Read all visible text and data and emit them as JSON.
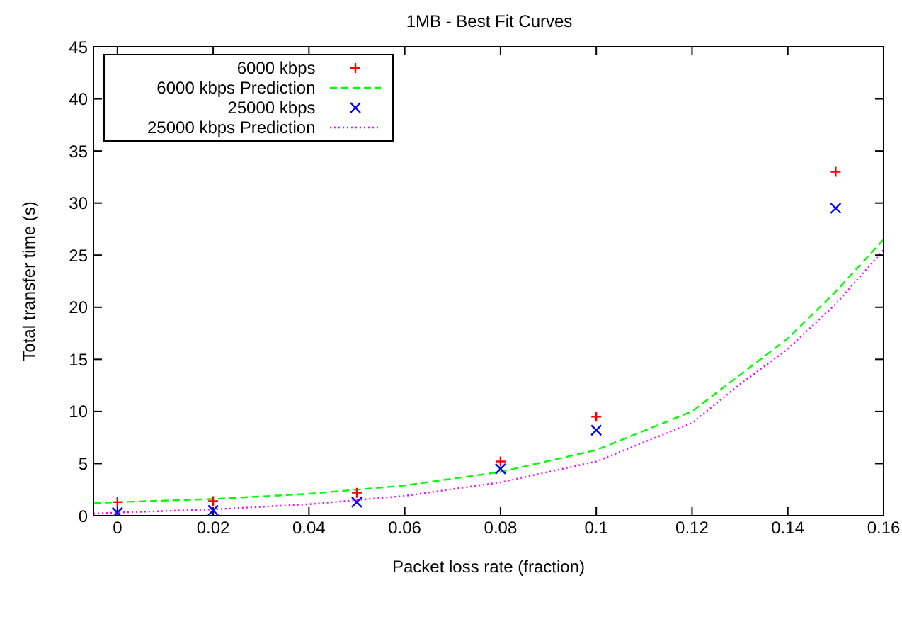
{
  "chart_data": {
    "type": "scatter",
    "title": "1MB - Best Fit Curves",
    "xlabel": "Packet loss rate (fraction)",
    "ylabel": "Total transfer time (s)",
    "xlim": [
      -0.005,
      0.16
    ],
    "xticks": [
      0,
      0.02,
      0.04,
      0.06,
      0.08,
      0.1,
      0.12,
      0.14,
      0.16
    ],
    "ylim": [
      0,
      45
    ],
    "yticks": [
      0,
      5,
      10,
      15,
      20,
      25,
      30,
      35,
      40,
      45
    ],
    "grid": false,
    "legend": "top left",
    "series": [
      {
        "name": "6000 kbps",
        "marker": "plus",
        "color": "#ff0000",
        "x": [
          0,
          0.02,
          0.05,
          0.08,
          0.1,
          0.15
        ],
        "values": [
          1.3,
          1.4,
          2.2,
          5.2,
          9.5,
          33
        ]
      },
      {
        "name": "6000 kbps Prediction",
        "type": "line",
        "line_style": "dashed",
        "color": "#00ff00",
        "x": [
          -0.005,
          0,
          0.02,
          0.04,
          0.06,
          0.08,
          0.1,
          0.12,
          0.13,
          0.14,
          0.15,
          0.16
        ],
        "values": [
          1.2,
          1.3,
          1.6,
          2.1,
          2.9,
          4.2,
          6.3,
          10,
          13.5,
          17,
          21.5,
          26.5
        ]
      },
      {
        "name": "25000 kbps",
        "marker": "cross",
        "color": "#0000ff",
        "x": [
          0,
          0.02,
          0.05,
          0.08,
          0.1,
          0.15
        ],
        "values": [
          0.3,
          0.5,
          1.3,
          4.5,
          8.2,
          29.5
        ]
      },
      {
        "name": "25000 kbps Prediction",
        "type": "line",
        "line_style": "dotted",
        "color": "#ff00ff",
        "x": [
          -0.005,
          0,
          0.02,
          0.04,
          0.06,
          0.08,
          0.1,
          0.12,
          0.13,
          0.14,
          0.15,
          0.16
        ],
        "values": [
          0.2,
          0.3,
          0.6,
          1.1,
          1.9,
          3.2,
          5.2,
          8.9,
          12.6,
          16,
          20.3,
          25.5
        ]
      }
    ]
  }
}
